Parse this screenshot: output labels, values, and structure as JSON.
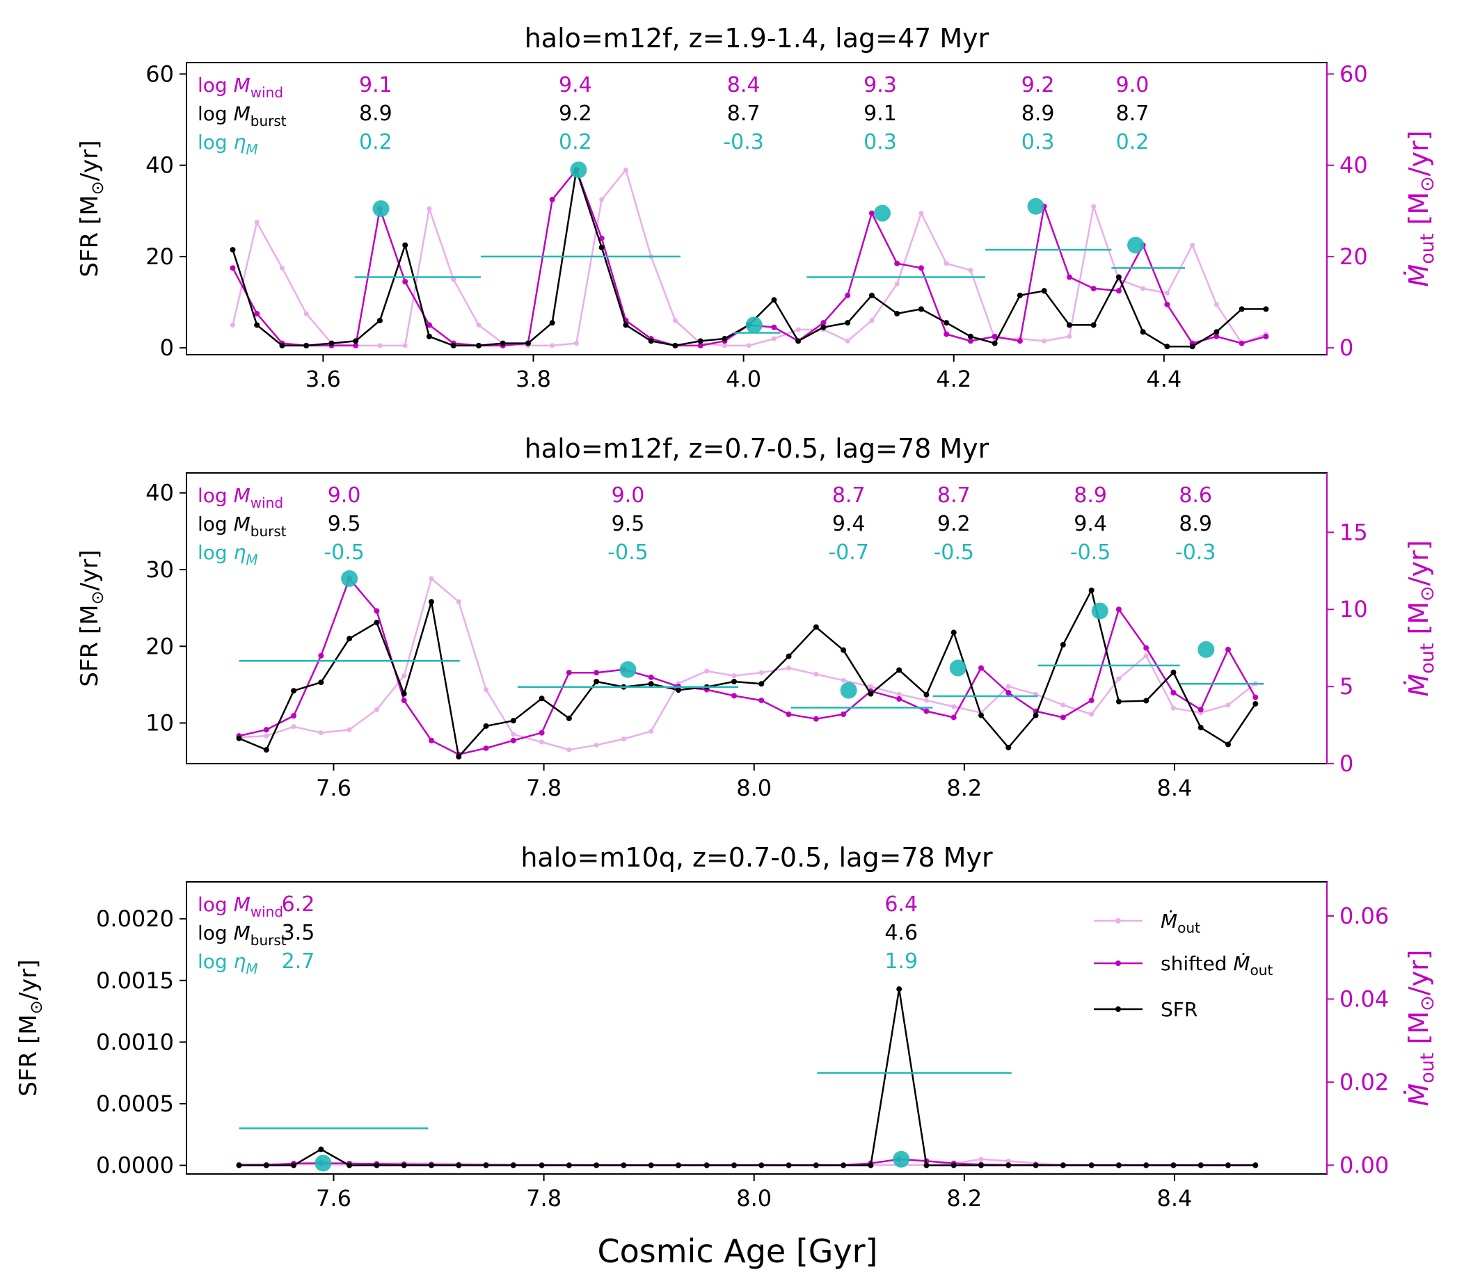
{
  "figure": {
    "xlabel": "Cosmic Age [Gyr]",
    "left_unit": "SFR [M⊙/yr]",
    "right_unit": "Ṁout [M⊙/yr]",
    "legend": [
      "Ṁout",
      "shifted Ṁout",
      "SFR"
    ]
  },
  "colors": {
    "sfr": "#000000",
    "mout": "#c000c0",
    "mout_raw": "#e8a0e8",
    "burst": "#20b8b8",
    "axis": "#000000"
  },
  "chart_data": [
    {
      "type": "line",
      "title": "halo=m12f, z=1.9-1.4, lag=47 Myr",
      "ylabel": "SFR [M⊙/yr]",
      "y2label": "Ṁout [M⊙/yr]",
      "xlim": [
        3.47,
        4.555
      ],
      "ylim": [
        -1.5,
        62.5
      ],
      "y2lim": [
        -1.5,
        62.5
      ],
      "xticks": [
        3.6,
        3.8,
        4.0,
        4.2,
        4.4
      ],
      "xtick_labels": [
        "3.6",
        "3.8",
        "4.0",
        "4.2",
        "4.4"
      ],
      "yticks": [
        0,
        20,
        40,
        60
      ],
      "ytick_labels": [
        "0",
        "20",
        "40",
        "60"
      ],
      "y2ticks": [
        0,
        20,
        40,
        60
      ],
      "y2tick_labels": [
        "0",
        "20",
        "40",
        "60"
      ],
      "row_labels": {
        "wind": "log M_wind",
        "burst": "log M_burst",
        "eta": "log η_M"
      },
      "annotations": [
        {
          "x": 3.65,
          "wind": "9.1",
          "burst": "8.9",
          "eta": "0.2"
        },
        {
          "x": 3.84,
          "wind": "9.4",
          "burst": "9.2",
          "eta": "0.2"
        },
        {
          "x": 4.0,
          "wind": "8.4",
          "burst": "8.7",
          "eta": "-0.3"
        },
        {
          "x": 4.13,
          "wind": "9.3",
          "burst": "9.1",
          "eta": "0.3"
        },
        {
          "x": 4.28,
          "wind": "9.2",
          "burst": "8.9",
          "eta": "0.3"
        },
        {
          "x": 4.37,
          "wind": "9.0",
          "burst": "8.7",
          "eta": "0.2"
        }
      ],
      "x": [
        3.514,
        3.537,
        3.561,
        3.584,
        3.608,
        3.631,
        3.654,
        3.678,
        3.701,
        3.724,
        3.748,
        3.771,
        3.795,
        3.818,
        3.841,
        3.865,
        3.888,
        3.912,
        3.935,
        3.959,
        3.982,
        4.005,
        4.029,
        4.052,
        4.076,
        4.099,
        4.122,
        4.146,
        4.169,
        4.193,
        4.216,
        4.239,
        4.263,
        4.286,
        4.31,
        4.333,
        4.357,
        4.38,
        4.403,
        4.427,
        4.45,
        4.474,
        4.497
      ],
      "series": [
        {
          "name": "Ṁout",
          "role": "raw",
          "values": [
            5,
            27.5,
            17.5,
            7.5,
            1,
            0.5,
            0.5,
            0.5,
            30.5,
            15,
            5,
            1,
            0.5,
            0.5,
            1,
            32.5,
            39,
            20,
            6,
            1,
            0.5,
            0.5,
            2,
            4,
            4,
            1.5,
            6,
            14,
            29.5,
            18.5,
            17,
            2,
            2,
            1.5,
            2.5,
            31,
            15,
            13,
            12,
            22.5,
            9.5,
            1,
            3
          ]
        },
        {
          "name": "shifted Ṁout",
          "role": "shifted",
          "values": [
            17.5,
            7.5,
            1,
            0.5,
            0.5,
            0.5,
            30.5,
            14.5,
            5,
            1,
            0.5,
            0.5,
            1,
            32.5,
            39,
            24,
            6,
            2,
            0.5,
            0.5,
            1.5,
            5,
            4.5,
            1.5,
            5.5,
            11.5,
            29.5,
            18.5,
            17.5,
            3,
            1.5,
            2.5,
            1.5,
            31,
            15.5,
            13,
            12.5,
            22.5,
            9.5,
            1,
            2.5,
            1,
            2.5
          ]
        },
        {
          "name": "SFR",
          "role": "sfr",
          "values": [
            21.5,
            5,
            0.5,
            0.5,
            1,
            1.5,
            6,
            22.5,
            2.5,
            0.5,
            0.5,
            1,
            1,
            5.5,
            39,
            22,
            5,
            1.5,
            0.5,
            1.5,
            2,
            5,
            10.5,
            1.5,
            4.5,
            5.5,
            11.5,
            7.5,
            8.5,
            5.5,
            2.5,
            1,
            11.5,
            12.5,
            5,
            5,
            15.5,
            3.5,
            0.3,
            0.3,
            3.5,
            8.5,
            8.5
          ]
        }
      ],
      "markers": [
        {
          "x": 3.655,
          "y": 30.5
        },
        {
          "x": 3.843,
          "y": 39
        },
        {
          "x": 4.01,
          "y": 5
        },
        {
          "x": 4.132,
          "y": 29.5
        },
        {
          "x": 4.278,
          "y": 31
        },
        {
          "x": 4.373,
          "y": 22.5
        }
      ],
      "burst_segments": [
        {
          "x0": 3.63,
          "x1": 3.75,
          "y": 15.5
        },
        {
          "x0": 3.75,
          "x1": 3.94,
          "y": 20
        },
        {
          "x0": 3.99,
          "x1": 4.035,
          "y": 3.3
        },
        {
          "x0": 4.06,
          "x1": 4.23,
          "y": 15.5
        },
        {
          "x0": 4.23,
          "x1": 4.35,
          "y": 21.5
        },
        {
          "x0": 4.35,
          "x1": 4.42,
          "y": 17.5
        }
      ]
    },
    {
      "type": "line",
      "title": "halo=m12f, z=0.7-0.5, lag=78 Myr",
      "ylabel": "SFR [M⊙/yr]",
      "y2label": "Ṁout [M⊙/yr]",
      "xlim": [
        7.46,
        8.545
      ],
      "ylim": [
        4.7,
        42.6
      ],
      "y2lim": [
        0,
        18.85
      ],
      "xticks": [
        7.6,
        7.8,
        8.0,
        8.2,
        8.4
      ],
      "xtick_labels": [
        "7.6",
        "7.8",
        "8.0",
        "8.2",
        "8.4"
      ],
      "yticks": [
        10,
        20,
        30,
        40
      ],
      "ytick_labels": [
        "10",
        "20",
        "30",
        "40"
      ],
      "y2ticks": [
        0,
        5,
        10,
        15
      ],
      "y2tick_labels": [
        "0",
        "5",
        "10",
        "15"
      ],
      "row_labels": {
        "wind": "log M_wind",
        "burst": "log M_burst",
        "eta": "log η_M"
      },
      "annotations": [
        {
          "x": 7.61,
          "wind": "9.0",
          "burst": "9.5",
          "eta": "-0.5"
        },
        {
          "x": 7.88,
          "wind": "9.0",
          "burst": "9.5",
          "eta": "-0.5"
        },
        {
          "x": 8.09,
          "wind": "8.7",
          "burst": "9.4",
          "eta": "-0.7"
        },
        {
          "x": 8.19,
          "wind": "8.7",
          "burst": "9.2",
          "eta": "-0.5"
        },
        {
          "x": 8.32,
          "wind": "8.9",
          "burst": "9.4",
          "eta": "-0.5"
        },
        {
          "x": 8.42,
          "wind": "8.6",
          "burst": "8.9",
          "eta": "-0.3"
        }
      ],
      "x": [
        7.51,
        7.536,
        7.562,
        7.588,
        7.615,
        7.641,
        7.667,
        7.693,
        7.719,
        7.745,
        7.771,
        7.798,
        7.824,
        7.85,
        7.876,
        7.902,
        7.928,
        7.955,
        7.981,
        8.007,
        8.033,
        8.059,
        8.085,
        8.111,
        8.138,
        8.164,
        8.19,
        8.216,
        8.242,
        8.268,
        8.294,
        8.321,
        8.347,
        8.373,
        8.399,
        8.425,
        8.451,
        8.477
      ],
      "series": [
        {
          "name": "Ṁout",
          "role": "raw",
          "values": [
            1.7,
            1.8,
            2.4,
            2.0,
            2.2,
            3.5,
            5.7,
            12.0,
            10.5,
            4.8,
            1.9,
            1.4,
            0.9,
            1.2,
            1.6,
            2.1,
            5.2,
            6.0,
            5.7,
            5.9,
            6.2,
            5.8,
            5.4,
            5.0,
            4.5,
            4.1,
            3.7,
            3.3,
            5.0,
            4.5,
            3.8,
            3.2,
            5.5,
            7.0,
            3.6,
            3.3,
            3.8,
            5.2
          ]
        },
        {
          "name": "shifted Ṁout",
          "role": "shifted",
          "values": [
            1.8,
            2.2,
            3.1,
            7.0,
            12.0,
            9.9,
            4.1,
            1.5,
            0.6,
            1.0,
            1.5,
            2.0,
            5.9,
            5.9,
            6.1,
            5.6,
            5.0,
            4.8,
            4.4,
            4.1,
            3.2,
            2.9,
            3.2,
            4.7,
            4.2,
            3.4,
            3.0,
            6.2,
            4.6,
            3.4,
            3.0,
            4.1,
            10.0,
            7.5,
            4.6,
            3.5,
            7.4,
            4.3
          ]
        },
        {
          "name": "SFR",
          "role": "sfr",
          "values": [
            8.0,
            6.5,
            14.2,
            15.3,
            21.0,
            23.1,
            13.8,
            25.8,
            5.6,
            9.6,
            10.3,
            13.2,
            10.6,
            15.4,
            14.7,
            15.1,
            14.3,
            14.7,
            15.4,
            15.1,
            18.7,
            22.5,
            19.5,
            13.8,
            16.9,
            13.7,
            21.8,
            11.0,
            6.8,
            11.0,
            20.2,
            27.3,
            12.8,
            12.9,
            16.6,
            9.4,
            7.2,
            12.5
          ]
        }
      ],
      "markers": [
        {
          "x": 7.615,
          "y": 12.0
        },
        {
          "x": 7.88,
          "y": 6.1
        },
        {
          "x": 8.09,
          "y": 4.75
        },
        {
          "x": 8.194,
          "y": 6.2
        },
        {
          "x": 8.329,
          "y": 9.9
        },
        {
          "x": 8.43,
          "y": 7.4
        }
      ],
      "burst_segments": [
        {
          "x0": 7.51,
          "x1": 7.72,
          "y": 18.1
        },
        {
          "x0": 7.775,
          "x1": 7.985,
          "y": 14.7
        },
        {
          "x0": 8.035,
          "x1": 8.17,
          "y": 12.0
        },
        {
          "x0": 8.17,
          "x1": 8.27,
          "y": 13.5
        },
        {
          "x0": 8.27,
          "x1": 8.405,
          "y": 17.5
        },
        {
          "x0": 8.405,
          "x1": 8.485,
          "y": 15.1
        }
      ]
    },
    {
      "type": "line",
      "title": "halo=m10q, z=0.7-0.5, lag=78 Myr",
      "ylabel": "SFR [M⊙/yr]",
      "y2label": "Ṁout [M⊙/yr]",
      "xlim": [
        7.46,
        8.545
      ],
      "ylim": [
        -7e-05,
        0.0023
      ],
      "y2lim": [
        -0.00212,
        0.0682
      ],
      "xticks": [
        7.6,
        7.8,
        8.0,
        8.2,
        8.4
      ],
      "xtick_labels": [
        "7.6",
        "7.8",
        "8.0",
        "8.2",
        "8.4"
      ],
      "yticks": [
        0.0,
        0.0005,
        0.001,
        0.0015,
        0.002
      ],
      "ytick_labels": [
        "0.0000",
        "0.0005",
        "0.0010",
        "0.0015",
        "0.0020"
      ],
      "y2ticks": [
        0.0,
        0.02,
        0.04,
        0.06
      ],
      "y2tick_labels": [
        "0.00",
        "0.02",
        "0.04",
        "0.06"
      ],
      "row_labels": {
        "wind": "log M_wind",
        "burst": "log M_burst",
        "eta": "log η_M"
      },
      "annotations": [
        {
          "x": 7.52,
          "wind": "6.2",
          "burst": "3.5",
          "eta": "2.7"
        },
        {
          "x": 8.14,
          "wind": "6.4",
          "burst": "4.6",
          "eta": "1.9"
        }
      ],
      "x": [
        7.51,
        7.536,
        7.562,
        7.588,
        7.615,
        7.641,
        7.667,
        7.693,
        7.719,
        7.745,
        7.771,
        7.798,
        7.824,
        7.85,
        7.876,
        7.902,
        7.928,
        7.955,
        7.981,
        8.007,
        8.033,
        8.059,
        8.085,
        8.111,
        8.138,
        8.164,
        8.19,
        8.216,
        8.242,
        8.268,
        8.294,
        8.321,
        8.347,
        8.373,
        8.399,
        8.425,
        8.451,
        8.477
      ],
      "series": [
        {
          "name": "Ṁout",
          "role": "raw",
          "values": [
            0.00025,
            0.00025,
            0.0002,
            0.00022,
            0.0001,
            0.0004,
            0.00045,
            0.0004,
            0.00033,
            0.00025,
            0.00015,
            0.0001,
            8e-05,
            5e-05,
            4e-05,
            4e-05,
            4e-05,
            4e-05,
            4e-05,
            4e-05,
            4e-05,
            4e-05,
            4e-05,
            3e-05,
            3e-05,
            3e-05,
            0.00042,
            0.00143,
            0.001,
            0.00043,
            0.00013,
            6e-05,
            4e-05,
            4e-05,
            4e-05,
            4e-05,
            3e-05,
            3e-05
          ]
        },
        {
          "name": "shifted Ṁout",
          "role": "shifted",
          "values": [
            3e-05,
            3e-05,
            0.0004,
            0.00048,
            0.0004,
            0.0003,
            0.00017,
            0.0001,
            6e-05,
            4e-05,
            3e-05,
            2e-05,
            2e-05,
            2e-05,
            2e-05,
            2e-05,
            2e-05,
            2e-05,
            2e-05,
            2e-05,
            2e-05,
            2e-05,
            2e-05,
            0.00045,
            0.00143,
            0.001,
            0.00043,
            0.00015,
            6e-05,
            4e-05,
            3e-05,
            3e-05,
            3e-05,
            3e-05,
            3e-05,
            3e-05,
            3e-05,
            3e-05
          ]
        },
        {
          "name": "SFR",
          "role": "sfr",
          "values": [
            0.0,
            0.0,
            0.0,
            0.00013,
            0.0,
            0.0,
            0.0,
            0.0,
            0.0,
            0.0,
            0.0,
            0.0,
            0.0,
            0.0,
            0.0,
            0.0,
            0.0,
            0.0,
            0.0,
            0.0,
            0.0,
            0.0,
            0.0,
            0.0,
            0.00143,
            0.0,
            0.0,
            0.0,
            0.0,
            0.0,
            0.0,
            0.0,
            0.0,
            0.0,
            0.0,
            0.0,
            0.0,
            0.0
          ]
        }
      ],
      "markers": [
        {
          "x": 7.59,
          "y": 0.00048
        },
        {
          "x": 8.14,
          "y": 0.00143
        }
      ],
      "burst_segments": [
        {
          "x0": 7.51,
          "x1": 7.69,
          "y": 0.0003
        },
        {
          "x0": 8.06,
          "x1": 8.245,
          "y": 0.00075
        }
      ],
      "legend_position": "upper-right"
    }
  ]
}
